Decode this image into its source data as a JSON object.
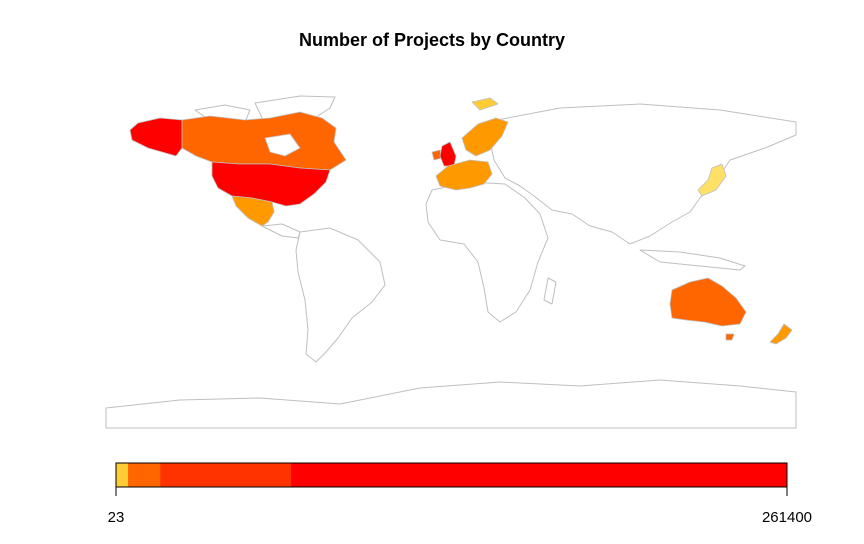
{
  "chart_data": {
    "type": "choropleth",
    "title": "Number of Projects by Country",
    "legend": {
      "placement": "bottom",
      "min_label": "23",
      "max_label": "261400",
      "bins": [
        {
          "color": "#FFCC33",
          "share": 0.018
        },
        {
          "color": "#FF6600",
          "share": 0.048
        },
        {
          "color": "#FF3300",
          "share": 0.195
        },
        {
          "color": "#FF0000",
          "share": 0.739
        }
      ]
    },
    "region_colors": [
      {
        "region": "United States",
        "color": "#FF0000"
      },
      {
        "region": "Alaska",
        "color": "#FF0000"
      },
      {
        "region": "Canada",
        "color": "#FF6600"
      },
      {
        "region": "Mexico",
        "color": "#FF9900"
      },
      {
        "region": "Greenland",
        "color": "#FFFFFF"
      },
      {
        "region": "United Kingdom",
        "color": "#FF0000"
      },
      {
        "region": "Ireland",
        "color": "#FF6600"
      },
      {
        "region": "France",
        "color": "#FF9900"
      },
      {
        "region": "Spain",
        "color": "#FF9900"
      },
      {
        "region": "Germany",
        "color": "#FF9900"
      },
      {
        "region": "Scandinavia",
        "color": "#FF9900"
      },
      {
        "region": "Svalbard",
        "color": "#FFCC33"
      },
      {
        "region": "Japan",
        "color": "#FFE066"
      },
      {
        "region": "Australia",
        "color": "#FF6600"
      },
      {
        "region": "New Zealand",
        "color": "#FF9900"
      }
    ]
  }
}
